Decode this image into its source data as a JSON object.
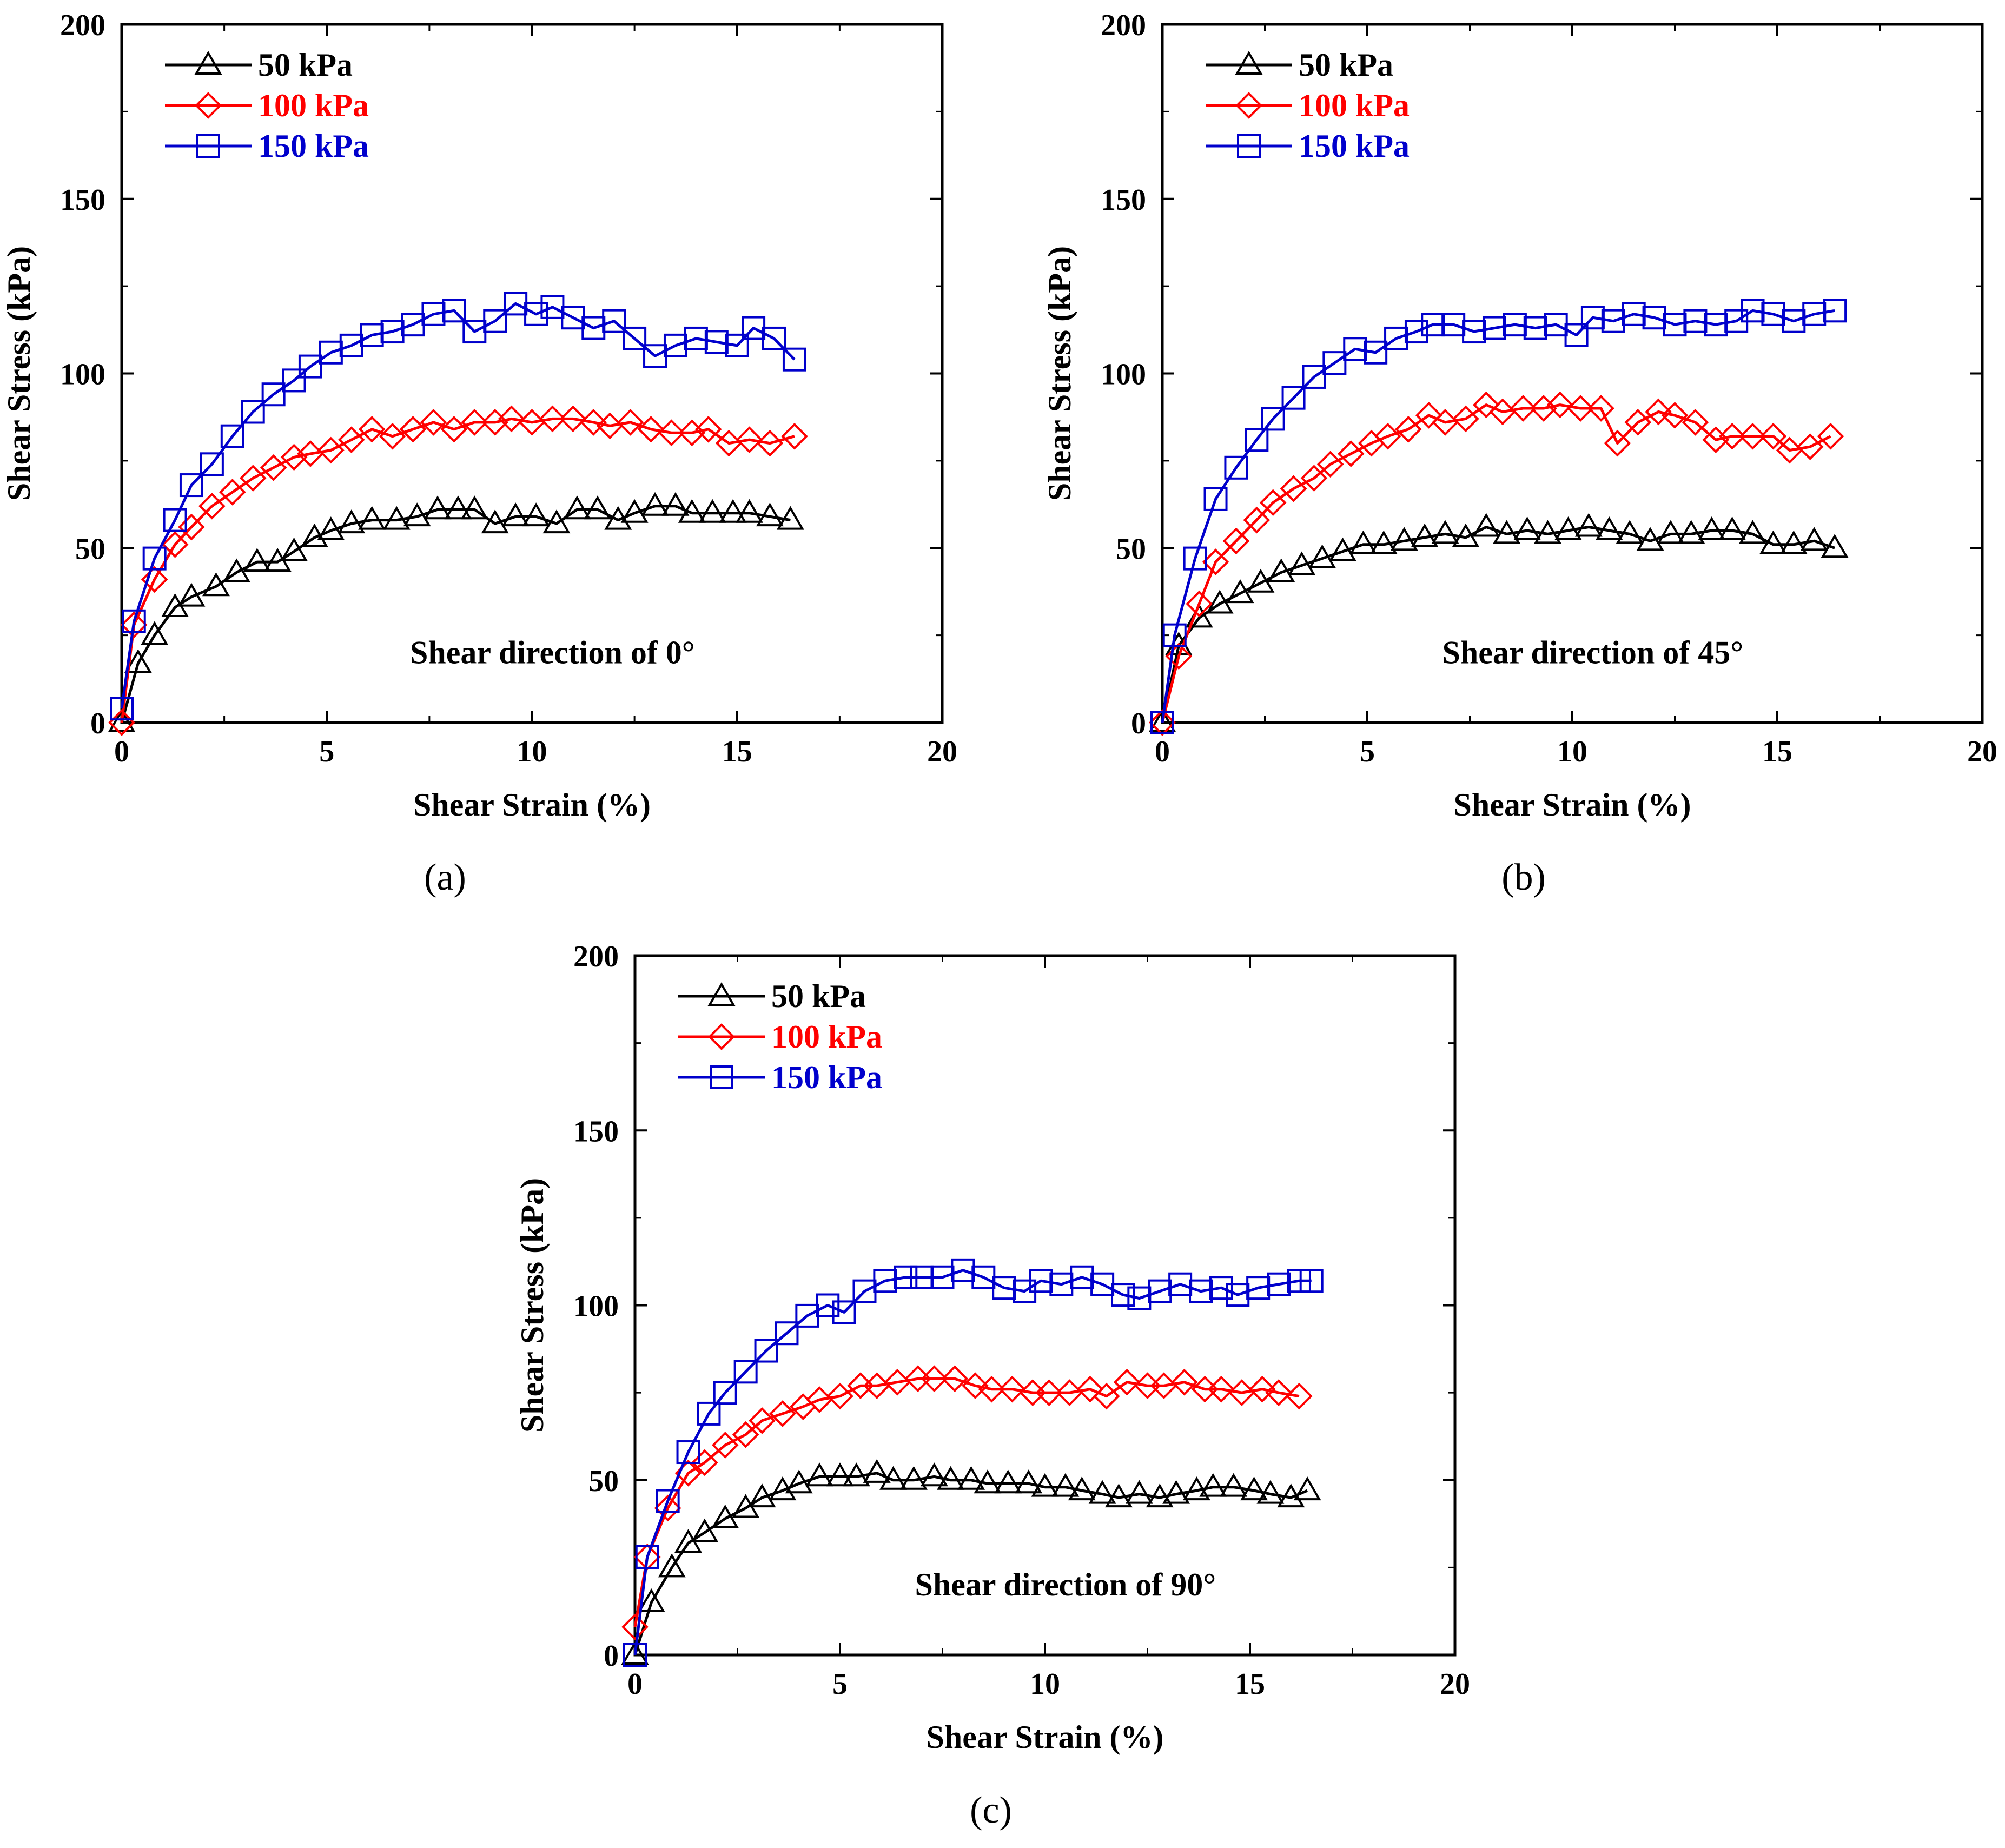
{
  "figure": {
    "colors": {
      "s50": "#000000",
      "s100": "#ff0000",
      "s150": "#0000cc"
    }
  },
  "chart_data": [
    {
      "panel": "(a)",
      "type": "line",
      "annotation": "Shear direction of 0°",
      "xlabel": "Shear Strain (%)",
      "ylabel": "Shear Stress (kPa)",
      "xlim": [
        0,
        20
      ],
      "ylim": [
        0,
        200
      ],
      "xticks": [
        "0",
        "5",
        "10",
        "15",
        "20"
      ],
      "yticks": [
        "0",
        "50",
        "100",
        "150",
        "200"
      ],
      "series": [
        {
          "name": "50 kPa",
          "marker": "triangle",
          "color": "#000000",
          "x": [
            0,
            0.4,
            0.8,
            1.3,
            1.7,
            2.3,
            2.8,
            3.3,
            3.8,
            4.2,
            4.7,
            5.1,
            5.6,
            6.1,
            6.7,
            7.2,
            7.7,
            8.2,
            8.6,
            9.1,
            9.6,
            10.1,
            10.6,
            11.1,
            11.6,
            12.1,
            12.5,
            13.0,
            13.5,
            13.9,
            14.4,
            14.9,
            15.3,
            15.8,
            16.3
          ],
          "y": [
            0,
            17,
            25,
            33,
            36,
            39,
            43,
            46,
            46,
            49,
            53,
            55,
            57,
            58,
            58,
            59,
            61,
            61,
            61,
            57,
            59,
            59,
            57,
            61,
            61,
            58,
            60,
            62,
            62,
            60,
            60,
            60,
            60,
            59,
            58
          ]
        },
        {
          "name": "100 kPa",
          "marker": "diamond",
          "color": "#ff0000",
          "x": [
            0,
            0.3,
            0.8,
            1.3,
            1.7,
            2.2,
            2.7,
            3.2,
            3.7,
            4.2,
            4.6,
            5.1,
            5.6,
            6.1,
            6.6,
            7.1,
            7.6,
            8.1,
            8.6,
            9.1,
            9.5,
            10.0,
            10.5,
            11.0,
            11.5,
            11.9,
            12.4,
            12.9,
            13.4,
            13.9,
            14.3,
            14.8,
            15.3,
            15.8,
            16.4
          ],
          "y": [
            0,
            28,
            41,
            51,
            56,
            62,
            66,
            70,
            73,
            76,
            77,
            78,
            81,
            84,
            82,
            84,
            86,
            84,
            86,
            86,
            87,
            86,
            87,
            87,
            86,
            85,
            86,
            84,
            83,
            83,
            84,
            80,
            81,
            80,
            82
          ]
        },
        {
          "name": "150 kPa",
          "marker": "square",
          "color": "#0000cc",
          "x": [
            0,
            0.3,
            0.8,
            1.3,
            1.7,
            2.2,
            2.7,
            3.2,
            3.7,
            4.2,
            4.6,
            5.1,
            5.6,
            6.1,
            6.6,
            7.1,
            7.6,
            8.1,
            8.6,
            9.1,
            9.6,
            10.1,
            10.5,
            11.0,
            11.5,
            12.0,
            12.5,
            13.0,
            13.5,
            14.0,
            14.5,
            15.0,
            15.4,
            15.9,
            16.4
          ],
          "y": [
            4,
            29,
            47,
            58,
            68,
            74,
            82,
            89,
            94,
            98,
            102,
            106,
            108,
            111,
            112,
            114,
            117,
            118,
            112,
            115,
            120,
            117,
            119,
            116,
            113,
            115,
            110,
            105,
            108,
            110,
            109,
            108,
            113,
            110,
            104
          ]
        }
      ]
    },
    {
      "panel": "(b)",
      "type": "line",
      "annotation": "Shear direction of 45°",
      "xlabel": "Shear Strain (%)",
      "ylabel": "Shear Stress (kPa)",
      "xlim": [
        0,
        20
      ],
      "ylim": [
        0,
        200
      ],
      "xticks": [
        "0",
        "5",
        "10",
        "15",
        "20"
      ],
      "yticks": [
        "0",
        "50",
        "100",
        "150",
        "200"
      ],
      "series": [
        {
          "name": "50 kPa",
          "marker": "triangle",
          "color": "#000000",
          "x": [
            0,
            0.4,
            0.9,
            1.4,
            1.9,
            2.4,
            2.9,
            3.4,
            3.9,
            4.4,
            4.9,
            5.4,
            5.9,
            6.4,
            6.9,
            7.4,
            7.9,
            8.4,
            8.9,
            9.4,
            9.9,
            10.4,
            10.9,
            11.4,
            11.9,
            12.4,
            12.9,
            13.4,
            13.9,
            14.4,
            14.9,
            15.4,
            15.9,
            16.4
          ],
          "y": [
            0,
            22,
            30,
            34,
            37,
            40,
            43,
            45,
            47,
            49,
            51,
            51,
            52,
            53,
            54,
            53,
            56,
            54,
            55,
            54,
            55,
            56,
            55,
            54,
            52,
            54,
            54,
            55,
            55,
            54,
            51,
            51,
            52,
            50
          ]
        },
        {
          "name": "100 kPa",
          "marker": "diamond",
          "color": "#ff0000",
          "x": [
            0,
            0.4,
            0.9,
            1.3,
            1.8,
            2.3,
            2.7,
            3.2,
            3.7,
            4.1,
            4.6,
            5.1,
            5.5,
            6.0,
            6.5,
            6.9,
            7.4,
            7.9,
            8.3,
            8.8,
            9.3,
            9.7,
            10.2,
            10.7,
            11.1,
            11.6,
            12.1,
            12.5,
            13.0,
            13.5,
            13.9,
            14.4,
            14.9,
            15.3,
            15.8,
            16.3
          ],
          "y": [
            0,
            19,
            34,
            46,
            52,
            58,
            63,
            67,
            70,
            74,
            77,
            80,
            82,
            84,
            88,
            86,
            87,
            91,
            89,
            90,
            90,
            91,
            90,
            90,
            80,
            86,
            89,
            88,
            86,
            81,
            82,
            82,
            82,
            78,
            79,
            82
          ]
        },
        {
          "name": "150 kPa",
          "marker": "square",
          "color": "#0000cc",
          "x": [
            0,
            0.3,
            0.8,
            1.3,
            1.8,
            2.3,
            2.7,
            3.2,
            3.7,
            4.2,
            4.7,
            5.2,
            5.7,
            6.2,
            6.6,
            7.1,
            7.6,
            8.1,
            8.6,
            9.1,
            9.6,
            10.1,
            10.5,
            11.0,
            11.5,
            12.0,
            12.5,
            13.0,
            13.5,
            14.0,
            14.4,
            14.9,
            15.4,
            15.9,
            16.4
          ],
          "y": [
            0,
            25,
            47,
            64,
            73,
            81,
            87,
            93,
            99,
            103,
            107,
            106,
            110,
            112,
            114,
            114,
            112,
            113,
            114,
            113,
            114,
            111,
            116,
            115,
            117,
            116,
            114,
            115,
            114,
            115,
            118,
            117,
            115,
            117,
            118
          ]
        }
      ]
    },
    {
      "panel": "(c)",
      "type": "line",
      "annotation": "Shear direction of 90°",
      "xlabel": "Shear Strain (%)",
      "ylabel": "Shear Stress (kPa)",
      "xlim": [
        0,
        20
      ],
      "ylim": [
        0,
        200
      ],
      "xticks": [
        "0",
        "5",
        "10",
        "15",
        "20"
      ],
      "yticks": [
        "0",
        "50",
        "100",
        "150",
        "200"
      ],
      "series": [
        {
          "name": "50 kPa",
          "marker": "triangle",
          "color": "#000000",
          "x": [
            0,
            0.4,
            0.9,
            1.3,
            1.7,
            2.2,
            2.7,
            3.1,
            3.6,
            4.0,
            4.5,
            5.0,
            5.4,
            5.9,
            6.3,
            6.8,
            7.3,
            7.7,
            8.2,
            8.6,
            9.1,
            9.6,
            10.0,
            10.5,
            10.9,
            11.4,
            11.8,
            12.3,
            12.8,
            13.2,
            13.7,
            14.1,
            14.6,
            15.1,
            15.5,
            16.0,
            16.4
          ],
          "y": [
            0,
            15,
            25,
            32,
            35,
            39,
            42,
            45,
            47,
            49,
            51,
            51,
            51,
            52,
            50,
            50,
            51,
            50,
            50,
            49,
            49,
            49,
            48,
            48,
            47,
            46,
            45,
            46,
            45,
            46,
            47,
            48,
            48,
            47,
            46,
            45,
            47
          ]
        },
        {
          "name": "100 kPa",
          "marker": "diamond",
          "color": "#ff0000",
          "x": [
            0,
            0.3,
            0.8,
            1.3,
            1.7,
            2.2,
            2.7,
            3.1,
            3.6,
            4.1,
            4.5,
            5.0,
            5.5,
            5.9,
            6.4,
            6.9,
            7.3,
            7.8,
            8.3,
            8.7,
            9.2,
            9.7,
            10.1,
            10.6,
            11.1,
            11.5,
            12.0,
            12.5,
            12.9,
            13.4,
            13.9,
            14.3,
            14.8,
            15.3,
            15.7,
            16.2
          ],
          "y": [
            8,
            28,
            42,
            52,
            55,
            60,
            63,
            67,
            69,
            71,
            73,
            74,
            77,
            77,
            78,
            79,
            79,
            79,
            77,
            76,
            76,
            75,
            75,
            75,
            76,
            74,
            78,
            77,
            77,
            78,
            76,
            76,
            75,
            76,
            75,
            74
          ]
        },
        {
          "name": "150 kPa",
          "marker": "square",
          "color": "#0000cc",
          "x": [
            0,
            0.3,
            0.8,
            1.3,
            1.8,
            2.2,
            2.7,
            3.2,
            3.7,
            4.2,
            4.7,
            5.1,
            5.6,
            6.1,
            6.6,
            7.0,
            7.5,
            8.0,
            8.5,
            9.0,
            9.5,
            9.9,
            10.4,
            10.9,
            11.4,
            11.9,
            12.3,
            12.8,
            13.3,
            13.8,
            14.3,
            14.7,
            15.2,
            15.7,
            16.2,
            16.5
          ],
          "y": [
            0,
            28,
            44,
            58,
            69,
            75,
            81,
            87,
            92,
            97,
            100,
            98,
            104,
            107,
            108,
            108,
            108,
            110,
            108,
            105,
            104,
            107,
            106,
            108,
            106,
            103,
            102,
            104,
            106,
            104,
            105,
            103,
            105,
            106,
            107,
            107
          ]
        }
      ]
    }
  ]
}
